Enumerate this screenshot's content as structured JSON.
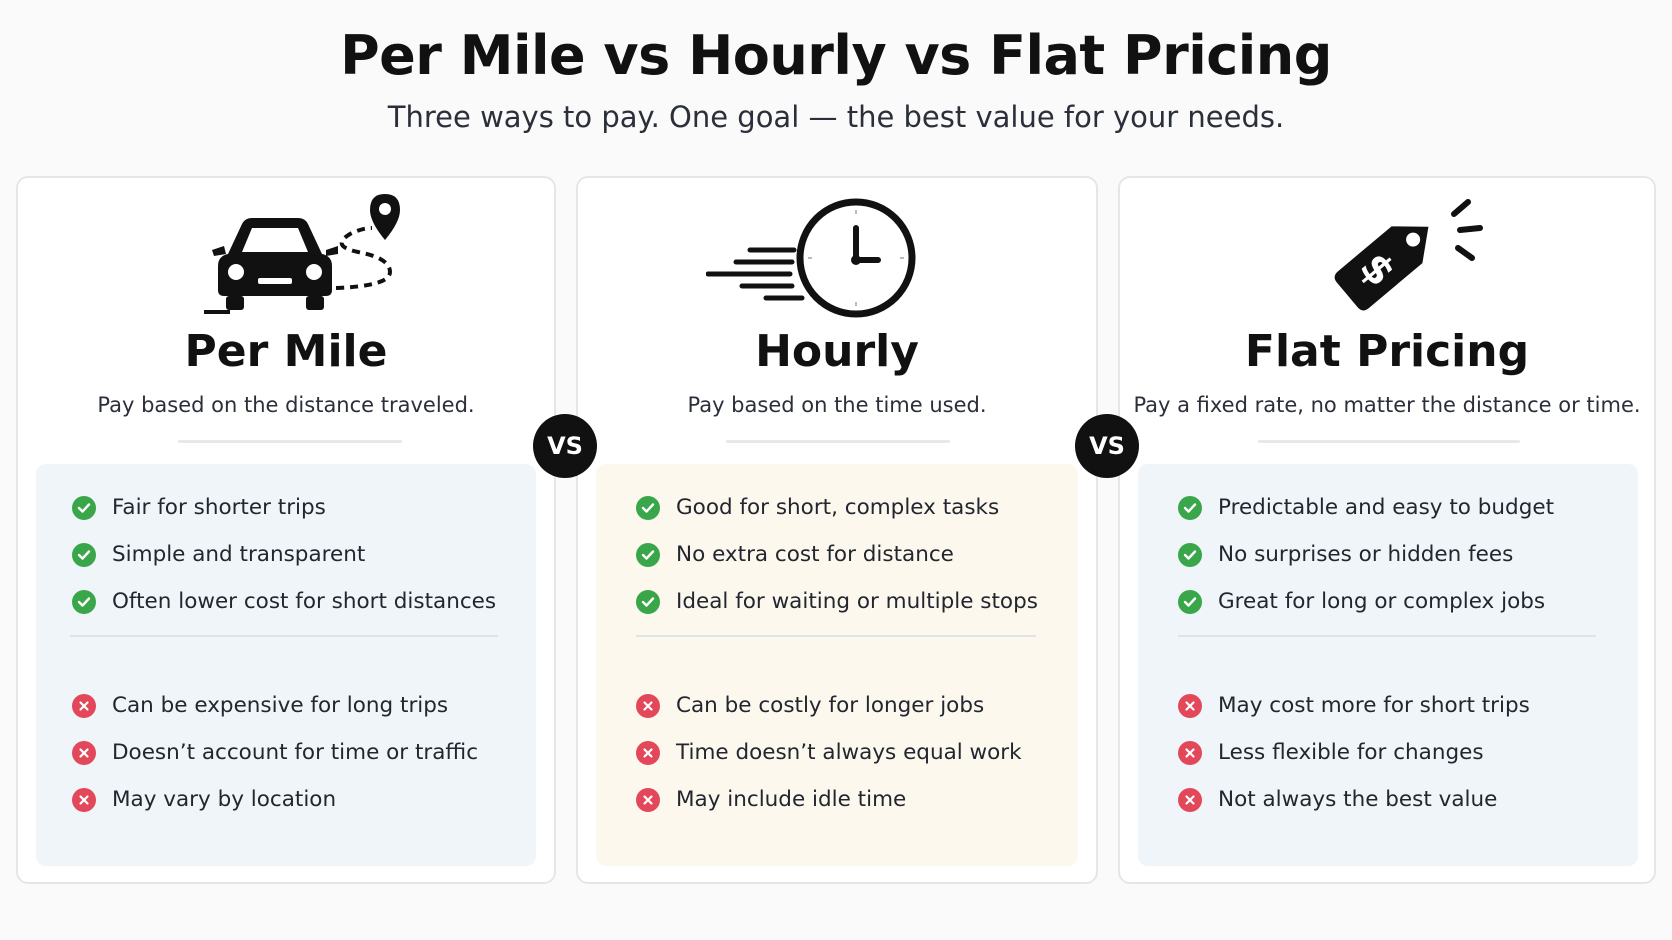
{
  "header": {
    "title": "Per Mile vs Hourly vs Flat Pricing",
    "subtitle": "Three ways to pay. One goal — the best value for your needs."
  },
  "vs_label": "VS",
  "colors": {
    "check": "#3aa64a",
    "cross": "#e3485a",
    "panel_blue": "#f0f5fa",
    "panel_cream": "#fdf8ee"
  },
  "cards": [
    {
      "icon": "car-route-icon",
      "title": "Per Mile",
      "description": "Pay based on the distance traveled.",
      "pros": [
        "Fair for shorter trips",
        "Simple and transparent",
        "Often lower cost for short distances"
      ],
      "cons": [
        "Can be expensive for long trips",
        "Doesn’t account for time or traffic",
        "May vary by location"
      ]
    },
    {
      "icon": "clock-icon",
      "title": "Hourly",
      "description": "Pay based on the time used.",
      "pros": [
        "Good for short, complex tasks",
        "No extra cost for distance",
        "Ideal for waiting or multiple stops"
      ],
      "cons": [
        "Can be costly for longer jobs",
        "Time doesn’t always equal work",
        "May include idle time"
      ]
    },
    {
      "icon": "price-tag-icon",
      "title": "Flat Pricing",
      "description": "Pay a fixed rate, no matter the distance or time.",
      "pros": [
        "Predictable and easy to budget",
        "No surprises or hidden fees",
        "Great for long or complex jobs"
      ],
      "cons": [
        "May cost more for short trips",
        "Less flexible for changes",
        "Not always the best value"
      ]
    }
  ]
}
